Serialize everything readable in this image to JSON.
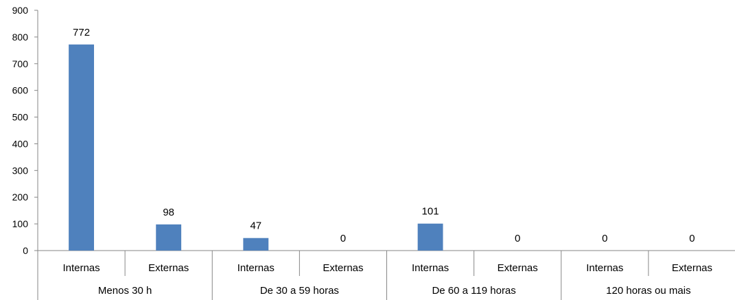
{
  "chart_data": {
    "type": "bar",
    "title": "",
    "xlabel": "",
    "ylabel": "",
    "ylim": [
      0,
      900
    ],
    "yticks": [
      "0",
      "100",
      "200",
      "300",
      "400",
      "500",
      "600",
      "700",
      "800",
      "900"
    ],
    "grid": false,
    "legend": "none",
    "bar_color": "#4f81bd",
    "groups": [
      {
        "name": "Menos 30 h",
        "categories": [
          "Internas",
          "Externas"
        ],
        "values": [
          772,
          98
        ],
        "labels": [
          "772",
          "98"
        ]
      },
      {
        "name": "De 30 a 59 horas",
        "categories": [
          "Internas",
          "Externas"
        ],
        "values": [
          47,
          0
        ],
        "labels": [
          "47",
          "0"
        ]
      },
      {
        "name": "De 60 a 119 horas",
        "categories": [
          "Internas",
          "Externas"
        ],
        "values": [
          101,
          0
        ],
        "labels": [
          "101",
          "0"
        ]
      },
      {
        "name": "120 horas ou mais",
        "categories": [
          "Internas",
          "Externas"
        ],
        "values": [
          0,
          0
        ],
        "labels": [
          "0",
          "0"
        ]
      }
    ]
  }
}
